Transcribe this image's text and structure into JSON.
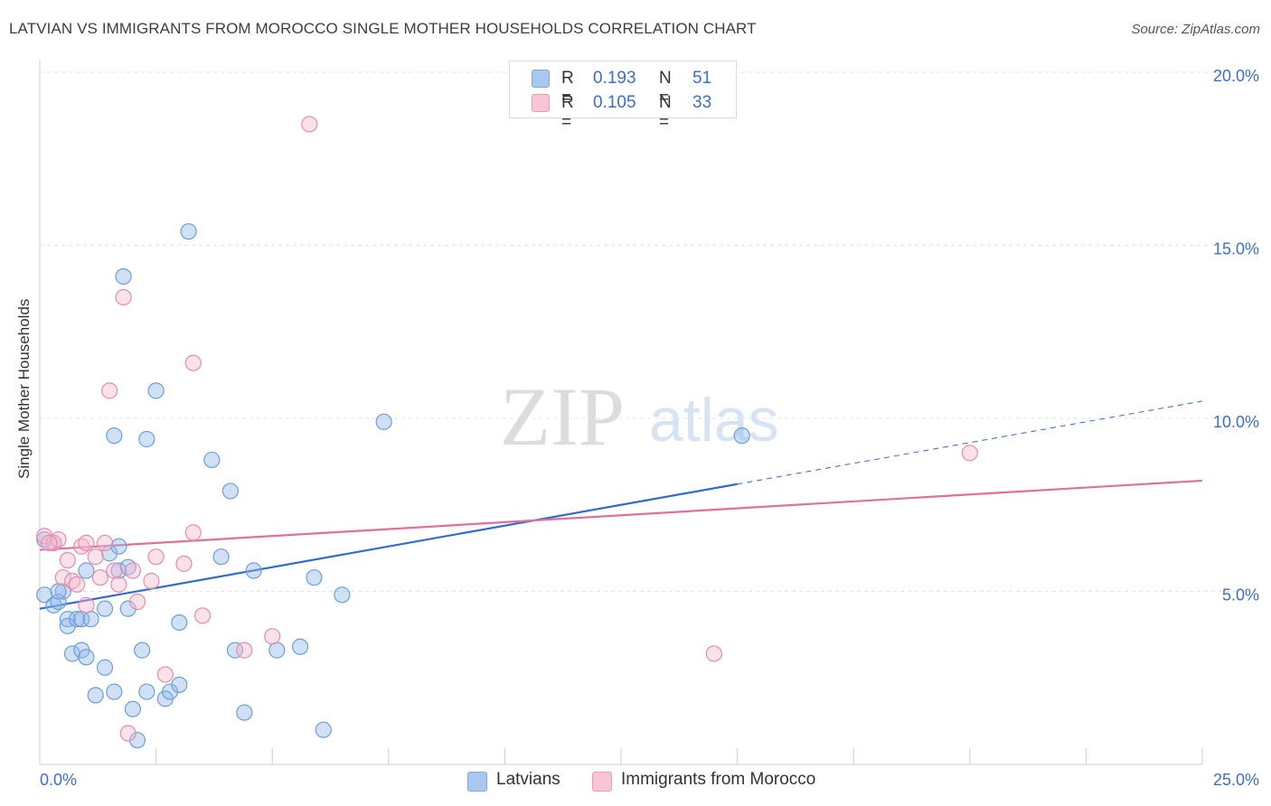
{
  "title": "LATVIAN VS IMMIGRANTS FROM MOROCCO SINGLE MOTHER HOUSEHOLDS CORRELATION CHART",
  "source": "Source: ZipAtlas.com",
  "watermark": {
    "zip": "ZIP",
    "atlas": "atlas"
  },
  "legend": {
    "rows": [
      {
        "r_label": "R =",
        "r_value": "0.193",
        "n_label": "N =",
        "n_value": "51",
        "color": "#a9c8ef",
        "border": "#7aa7e0"
      },
      {
        "r_label": "R =",
        "r_value": "0.105",
        "n_label": "N =",
        "n_value": "33",
        "color": "#f8c5d6",
        "border": "#e99ab5"
      }
    ]
  },
  "bottom_legend": [
    {
      "label": "Latvians",
      "color": "#a9c8ef",
      "border": "#7aa7e0"
    },
    {
      "label": "Immigrants from Morocco",
      "color": "#f8c5d6",
      "border": "#e99ab5"
    }
  ],
  "chart_data": {
    "type": "scatter",
    "ylabel": "Single Mother Households",
    "xlim": [
      0,
      25
    ],
    "ylim": [
      0,
      20
    ],
    "x_tick_labels": [
      "0.0%",
      "25.0%"
    ],
    "y_ticks": [
      5,
      10,
      15,
      20
    ],
    "y_tick_labels": [
      "5.0%",
      "10.0%",
      "15.0%",
      "20.0%"
    ],
    "grid": true,
    "series": [
      {
        "name": "Latvians",
        "color": "#8fb8e8",
        "stroke": "#6d9edb",
        "trend_color": "#2f6ccc",
        "trend": {
          "x0": 0,
          "y0": 4.5,
          "x1": 15,
          "y1": 8.1,
          "dashed_to_x": 25,
          "dashed_to_y": 10.5
        },
        "points": [
          [
            0.1,
            6.5
          ],
          [
            0.1,
            4.9
          ],
          [
            0.3,
            4.6
          ],
          [
            0.4,
            4.7
          ],
          [
            0.5,
            5.0
          ],
          [
            0.6,
            4.2
          ],
          [
            0.6,
            4.0
          ],
          [
            0.7,
            3.2
          ],
          [
            0.8,
            4.2
          ],
          [
            0.9,
            4.2
          ],
          [
            0.9,
            3.3
          ],
          [
            1.0,
            3.1
          ],
          [
            1.0,
            5.6
          ],
          [
            1.1,
            4.2
          ],
          [
            1.2,
            2.0
          ],
          [
            1.4,
            2.8
          ],
          [
            1.4,
            4.5
          ],
          [
            1.5,
            6.1
          ],
          [
            1.6,
            9.5
          ],
          [
            1.6,
            2.1
          ],
          [
            1.7,
            5.6
          ],
          [
            1.7,
            6.3
          ],
          [
            1.8,
            14.1
          ],
          [
            1.9,
            5.7
          ],
          [
            1.9,
            4.5
          ],
          [
            2.0,
            1.6
          ],
          [
            2.1,
            0.7
          ],
          [
            2.2,
            3.3
          ],
          [
            2.3,
            9.4
          ],
          [
            2.3,
            2.1
          ],
          [
            2.5,
            10.8
          ],
          [
            2.7,
            1.9
          ],
          [
            2.8,
            2.1
          ],
          [
            3.0,
            2.3
          ],
          [
            3.0,
            4.1
          ],
          [
            3.2,
            15.4
          ],
          [
            3.7,
            8.8
          ],
          [
            3.9,
            6.0
          ],
          [
            4.1,
            7.9
          ],
          [
            4.2,
            3.3
          ],
          [
            4.4,
            1.5
          ],
          [
            4.6,
            5.6
          ],
          [
            5.1,
            3.3
          ],
          [
            5.6,
            3.4
          ],
          [
            5.9,
            5.4
          ],
          [
            6.1,
            1.0
          ],
          [
            6.5,
            4.9
          ],
          [
            7.4,
            9.9
          ],
          [
            15.1,
            9.5
          ],
          [
            0.3,
            6.4
          ],
          [
            0.4,
            5.0
          ]
        ]
      },
      {
        "name": "Immigrants from Morocco",
        "color": "#f5b8cc",
        "stroke": "#e68cab",
        "trend_color": "#e0709a",
        "trend": {
          "x0": 0,
          "y0": 6.2,
          "x1": 25,
          "y1": 8.2
        },
        "points": [
          [
            0.1,
            6.6
          ],
          [
            0.3,
            6.4
          ],
          [
            0.4,
            6.5
          ],
          [
            0.5,
            5.4
          ],
          [
            0.6,
            5.9
          ],
          [
            0.7,
            5.3
          ],
          [
            0.8,
            5.2
          ],
          [
            0.9,
            6.3
          ],
          [
            1.0,
            6.4
          ],
          [
            1.0,
            4.6
          ],
          [
            1.2,
            6.0
          ],
          [
            1.3,
            5.4
          ],
          [
            1.4,
            6.4
          ],
          [
            1.5,
            10.8
          ],
          [
            1.6,
            5.6
          ],
          [
            1.7,
            5.2
          ],
          [
            1.8,
            13.5
          ],
          [
            1.9,
            0.9
          ],
          [
            2.0,
            5.6
          ],
          [
            2.1,
            4.7
          ],
          [
            2.4,
            5.3
          ],
          [
            2.5,
            6.0
          ],
          [
            2.7,
            2.6
          ],
          [
            3.1,
            5.8
          ],
          [
            3.3,
            11.6
          ],
          [
            3.3,
            6.7
          ],
          [
            3.5,
            4.3
          ],
          [
            4.4,
            3.3
          ],
          [
            5.0,
            3.7
          ],
          [
            5.8,
            18.5
          ],
          [
            14.5,
            3.2
          ],
          [
            20.0,
            9.0
          ],
          [
            0.2,
            6.4
          ]
        ]
      }
    ]
  }
}
